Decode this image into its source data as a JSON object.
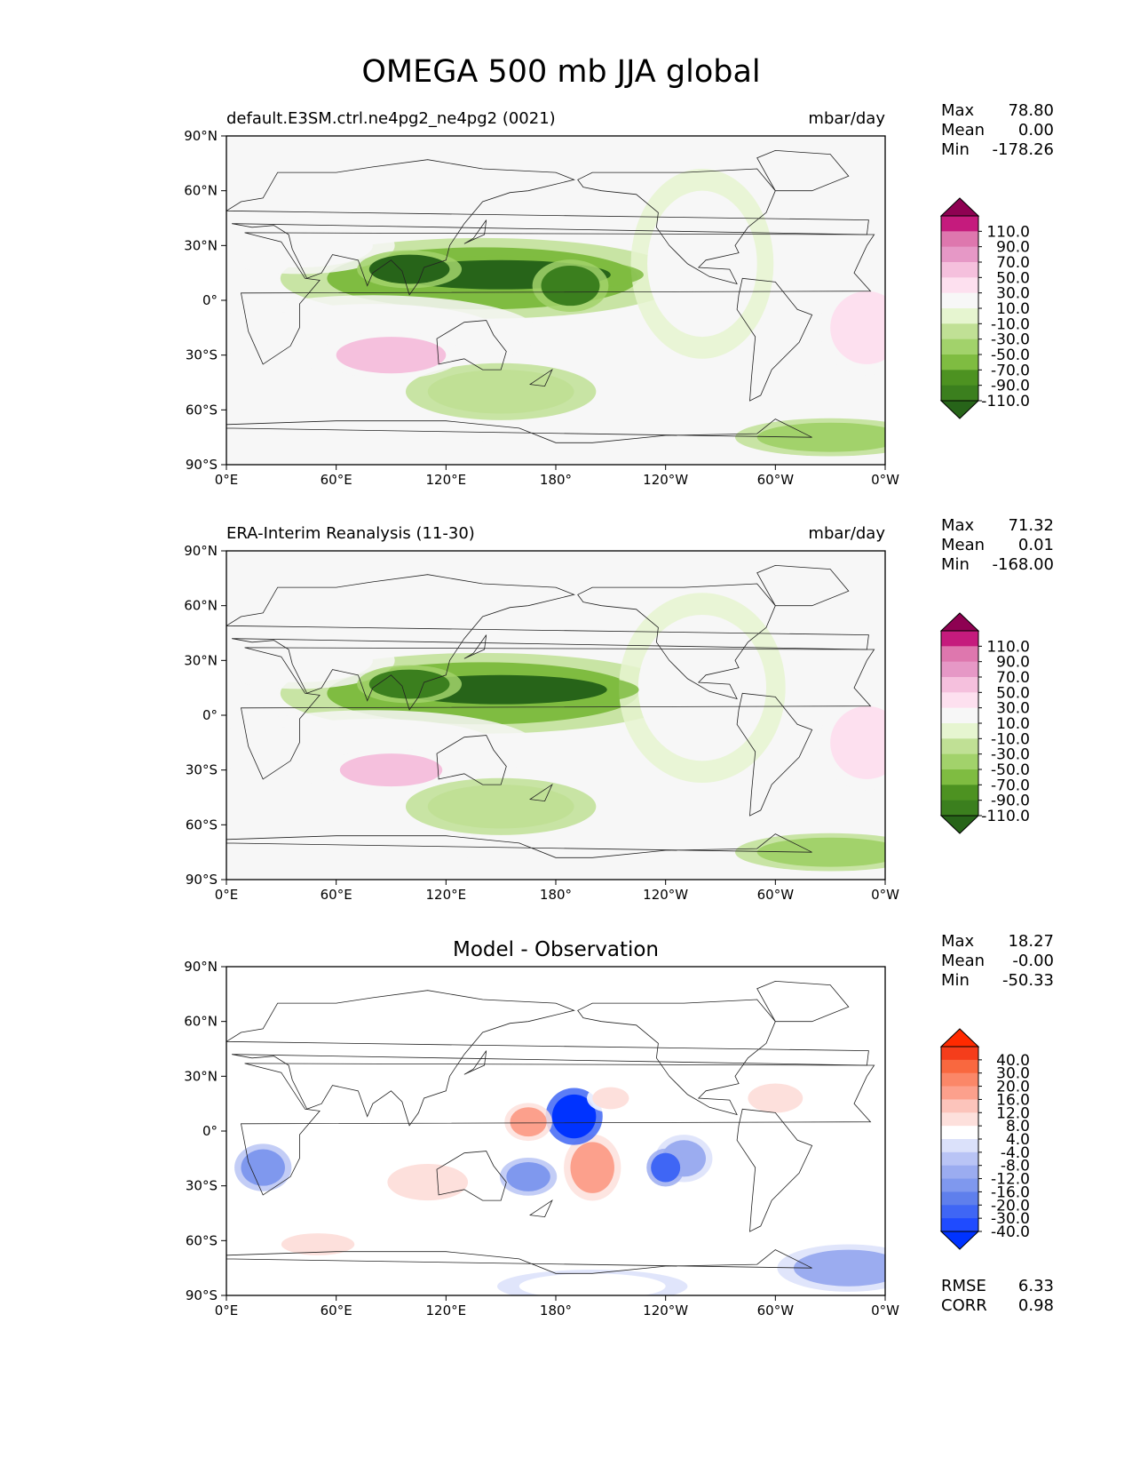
{
  "title": "OMEGA 500 mb JJA global",
  "lat_ticks": [
    "90°N",
    "60°N",
    "30°N",
    "0°",
    "30°S",
    "60°S",
    "90°S"
  ],
  "lon_ticks": [
    "0°E",
    "60°E",
    "120°E",
    "180°",
    "120°W",
    "60°W",
    "0°W"
  ],
  "chart_data": [
    {
      "type": "heatmap",
      "projection": "PlateCarree (central longitude 180)",
      "title_left": "default.E3SM.ctrl.ne4pg2_ne4pg2 (0021)",
      "units": "mbar/day",
      "xlim": [
        0,
        360
      ],
      "ylim": [
        -90,
        90
      ],
      "stats": [
        {
          "label": "Max",
          "value": "78.80"
        },
        {
          "label": "Mean",
          "value": "0.00"
        },
        {
          "label": "Min",
          "value": "-178.26"
        }
      ],
      "colorbar": {
        "extend": "both",
        "colors": [
          "#276419",
          "#3b7f1e",
          "#4d9221",
          "#7fbc41",
          "#a2d26b",
          "#c0e095",
          "#e6f5d0",
          "#f7f7f7",
          "#fde0ef",
          "#f5c0dd",
          "#e698c6",
          "#de77ae",
          "#c51b7d",
          "#8e0152"
        ],
        "tick_labels": [
          "110.0",
          "90.0",
          "70.0",
          "50.0",
          "30.0",
          "10.0",
          "-10.0",
          "-30.0",
          "-50.0",
          "-70.0",
          "-90.0",
          "-110.0"
        ]
      },
      "features": [
        {
          "lon": 150,
          "lat": 14,
          "rx": 60,
          "ry": 8,
          "value": -120
        },
        {
          "lon": 100,
          "lat": 17,
          "rx": 22,
          "ry": 8,
          "value": -110
        },
        {
          "lon": 188,
          "lat": 8,
          "rx": 16,
          "ry": 11,
          "value": -100
        },
        {
          "lon": 140,
          "lat": 12,
          "rx": 85,
          "ry": 17,
          "value": -50
        },
        {
          "lon": 260,
          "lat": 20,
          "rx": 30,
          "ry": 40,
          "value": 15
        },
        {
          "lon": 80,
          "lat": -18,
          "rx": 70,
          "ry": 16,
          "value": 30
        },
        {
          "lon": 90,
          "lat": -30,
          "rx": 30,
          "ry": 10,
          "value": 60
        },
        {
          "lon": 40,
          "lat": 30,
          "rx": 40,
          "ry": 12,
          "value": 25
        },
        {
          "lon": 350,
          "lat": -15,
          "rx": 20,
          "ry": 20,
          "value": 40
        },
        {
          "lon": 150,
          "lat": -50,
          "rx": 40,
          "ry": 12,
          "value": -25
        },
        {
          "lon": 330,
          "lat": -75,
          "rx": 40,
          "ry": 8,
          "value": -30
        },
        {
          "lon": 190,
          "lat": -85,
          "rx": 60,
          "ry": 8,
          "value": 25
        }
      ]
    },
    {
      "type": "heatmap",
      "projection": "PlateCarree (central longitude 180)",
      "title_left": "ERA-Interim Reanalysis (11-30)",
      "units": "mbar/day",
      "xlim": [
        0,
        360
      ],
      "ylim": [
        -90,
        90
      ],
      "stats": [
        {
          "label": "Max",
          "value": "71.32"
        },
        {
          "label": "Mean",
          "value": "0.01"
        },
        {
          "label": "Min",
          "value": "-168.00"
        }
      ],
      "colorbar": {
        "extend": "both",
        "colors": [
          "#276419",
          "#3b7f1e",
          "#4d9221",
          "#7fbc41",
          "#a2d26b",
          "#c0e095",
          "#e6f5d0",
          "#f7f7f7",
          "#fde0ef",
          "#f5c0dd",
          "#e698c6",
          "#de77ae",
          "#c51b7d",
          "#8e0152"
        ],
        "tick_labels": [
          "110.0",
          "90.0",
          "70.0",
          "50.0",
          "30.0",
          "10.0",
          "-10.0",
          "-30.0",
          "-50.0",
          "-70.0",
          "-90.0",
          "-110.0"
        ]
      },
      "features": [
        {
          "lon": 150,
          "lat": 14,
          "rx": 58,
          "ry": 8,
          "value": -115
        },
        {
          "lon": 100,
          "lat": 17,
          "rx": 22,
          "ry": 8,
          "value": -105
        },
        {
          "lon": 140,
          "lat": 12,
          "rx": 85,
          "ry": 17,
          "value": -50
        },
        {
          "lon": 260,
          "lat": 15,
          "rx": 35,
          "ry": 40,
          "value": 15
        },
        {
          "lon": 80,
          "lat": -18,
          "rx": 70,
          "ry": 16,
          "value": 30
        },
        {
          "lon": 90,
          "lat": -30,
          "rx": 28,
          "ry": 9,
          "value": 55
        },
        {
          "lon": 40,
          "lat": 30,
          "rx": 40,
          "ry": 12,
          "value": 25
        },
        {
          "lon": 350,
          "lat": -15,
          "rx": 20,
          "ry": 20,
          "value": 40
        },
        {
          "lon": 150,
          "lat": -50,
          "rx": 40,
          "ry": 12,
          "value": -25
        },
        {
          "lon": 330,
          "lat": -75,
          "rx": 40,
          "ry": 8,
          "value": -30
        },
        {
          "lon": 190,
          "lat": -85,
          "rx": 60,
          "ry": 8,
          "value": 25
        }
      ]
    },
    {
      "type": "heatmap",
      "projection": "PlateCarree (central longitude 180)",
      "title_center": "Model - Observation",
      "xlim": [
        0,
        360
      ],
      "ylim": [
        -90,
        90
      ],
      "stats": [
        {
          "label": "Max",
          "value": "18.27"
        },
        {
          "label": "Mean",
          "value": "-0.00"
        },
        {
          "label": "Min",
          "value": "-50.33"
        }
      ],
      "metrics": [
        {
          "label": "RMSE",
          "value": "6.33"
        },
        {
          "label": "CORR",
          "value": "0.98"
        }
      ],
      "colorbar": {
        "extend": "both",
        "colors": [
          "#0033ff",
          "#1f4bff",
          "#3f66f5",
          "#5f7fec",
          "#7f98ee",
          "#9bacf0",
          "#b9c4f5",
          "#dbe1fa",
          "#ffffff",
          "#fde0dc",
          "#fcc4bb",
          "#fca08c",
          "#fb8768",
          "#f9683f",
          "#f53d1b",
          "#ff2a00"
        ],
        "tick_labels": [
          "40.0",
          "30.0",
          "20.0",
          "16.0",
          "12.0",
          "8.0",
          "4.0",
          "-4.0",
          "-8.0",
          "-12.0",
          "-16.0",
          "-20.0",
          "-30.0",
          "-40.0"
        ]
      },
      "features": [
        {
          "lon": 190,
          "lat": 8,
          "rx": 12,
          "ry": 12,
          "value": -45
        },
        {
          "lon": 240,
          "lat": -20,
          "rx": 8,
          "ry": 8,
          "value": -25
        },
        {
          "lon": 20,
          "lat": -20,
          "rx": 12,
          "ry": 10,
          "value": -15
        },
        {
          "lon": 165,
          "lat": -25,
          "rx": 12,
          "ry": 8,
          "value": -14
        },
        {
          "lon": 200,
          "lat": -20,
          "rx": 12,
          "ry": 14,
          "value": 18
        },
        {
          "lon": 165,
          "lat": 5,
          "rx": 10,
          "ry": 8,
          "value": 18
        },
        {
          "lon": 110,
          "lat": -28,
          "rx": 22,
          "ry": 10,
          "value": 12
        },
        {
          "lon": 50,
          "lat": -62,
          "rx": 20,
          "ry": 6,
          "value": 10
        },
        {
          "lon": 300,
          "lat": 18,
          "rx": 15,
          "ry": 8,
          "value": 10
        },
        {
          "lon": 210,
          "lat": 18,
          "rx": 10,
          "ry": 6,
          "value": 10
        },
        {
          "lon": 250,
          "lat": -15,
          "rx": 12,
          "ry": 10,
          "value": -8
        },
        {
          "lon": 340,
          "lat": -75,
          "rx": 30,
          "ry": 10,
          "value": -8
        },
        {
          "lon": 200,
          "lat": -85,
          "rx": 40,
          "ry": 7,
          "value": 5
        }
      ]
    }
  ]
}
